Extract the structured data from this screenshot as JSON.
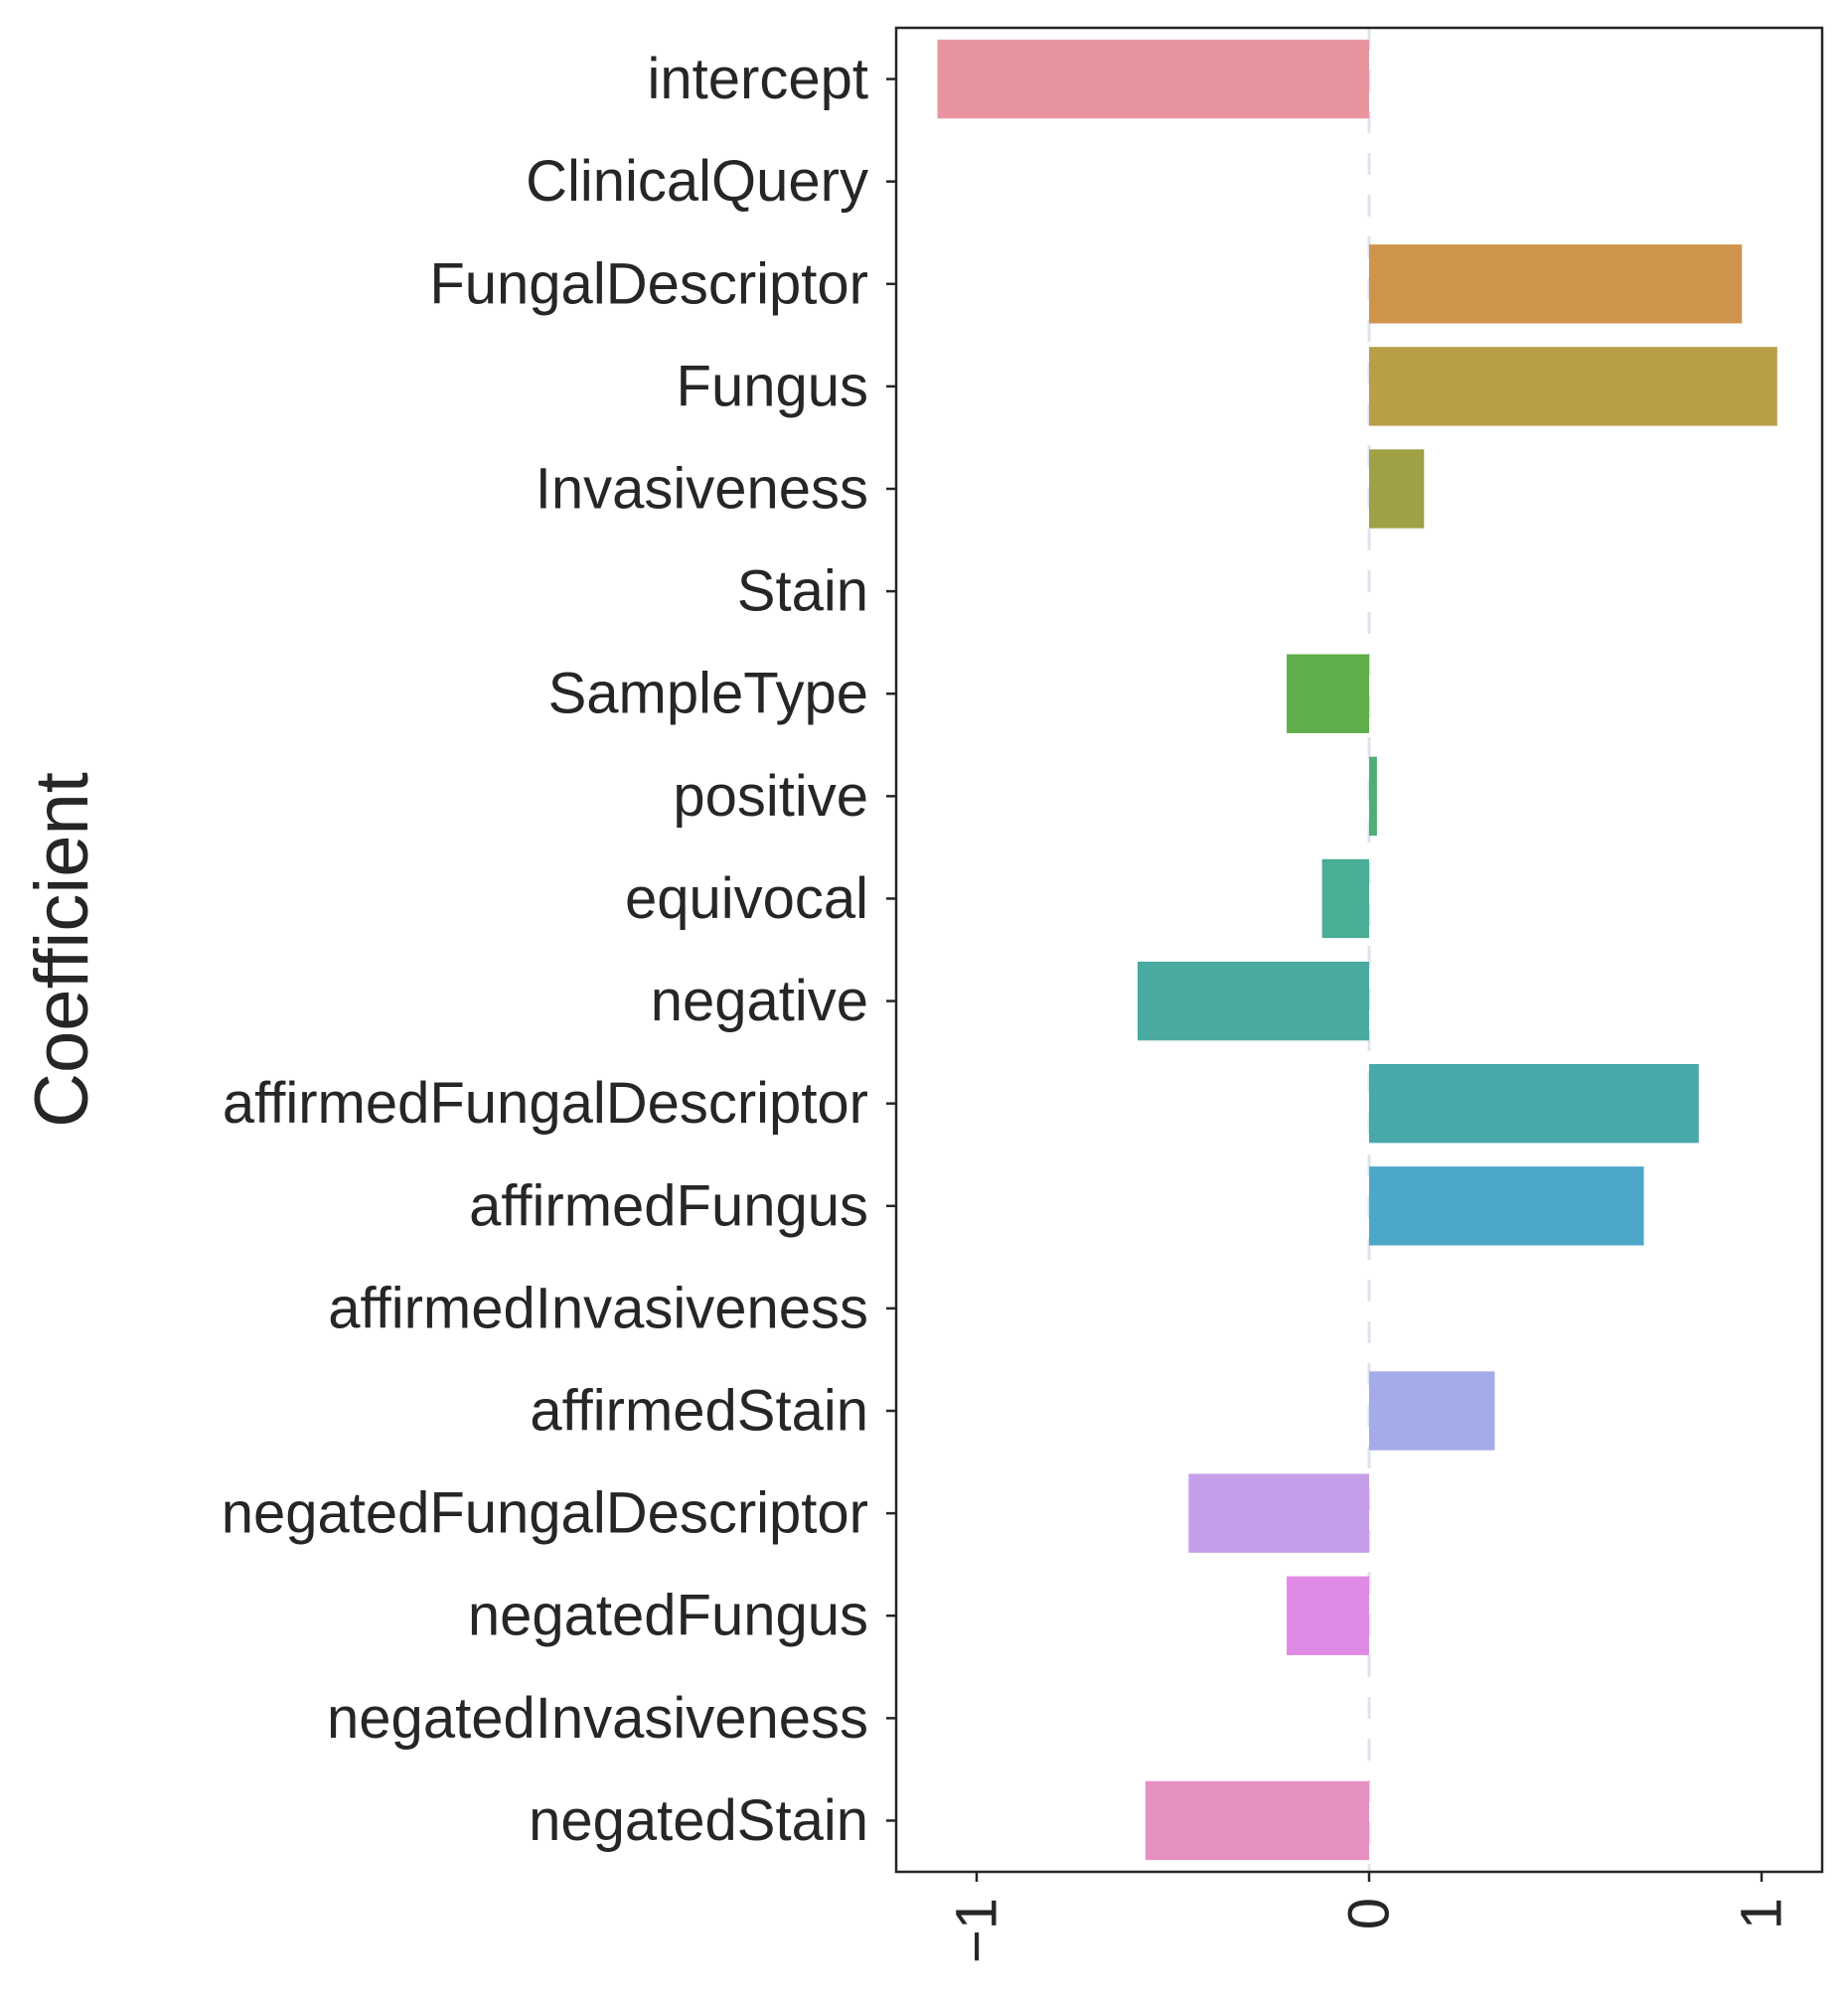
{
  "chart_data": {
    "type": "bar",
    "orientation": "horizontal",
    "title": "",
    "xlabel": "",
    "ylabel": "Coefficient",
    "xlim": [
      -1.22,
      1.15
    ],
    "xticks": [
      {
        "value": -1,
        "label": "−1"
      },
      {
        "value": 0,
        "label": "0"
      },
      {
        "value": 1,
        "label": "1"
      }
    ],
    "xtick_rotation": "vertical",
    "zero_line": "dashed",
    "grid": false,
    "legend": "none",
    "categories": [
      "intercept",
      "ClinicalQuery",
      "FungalDescriptor",
      "Fungus",
      "Invasiveness",
      "Stain",
      "SampleType",
      "positive",
      "equivocal",
      "negative",
      "affirmedFungalDescriptor",
      "affirmedFungus",
      "affirmedInvasiveness",
      "affirmedStain",
      "negatedFungalDescriptor",
      "negatedFungus",
      "negatedInvasiveness",
      "negatedStain"
    ],
    "values": [
      -1.1,
      0.0,
      0.95,
      1.04,
      0.14,
      0.0,
      -0.21,
      0.02,
      -0.12,
      -0.59,
      0.84,
      0.7,
      0.0,
      0.32,
      -0.46,
      -0.21,
      0.0,
      -0.57
    ],
    "colors": [
      "#e8949f",
      "#e8949f",
      "#cf944c",
      "#b99e48",
      "#a0a046",
      "#6aab48",
      "#5fae4b",
      "#4fae78",
      "#4aad95",
      "#4aaaa0",
      "#48a8aa",
      "#4da7c8",
      "#8fa6e0",
      "#a5abe8",
      "#c49ee9",
      "#df8be5",
      "#e690c4",
      "#e690bf"
    ]
  }
}
